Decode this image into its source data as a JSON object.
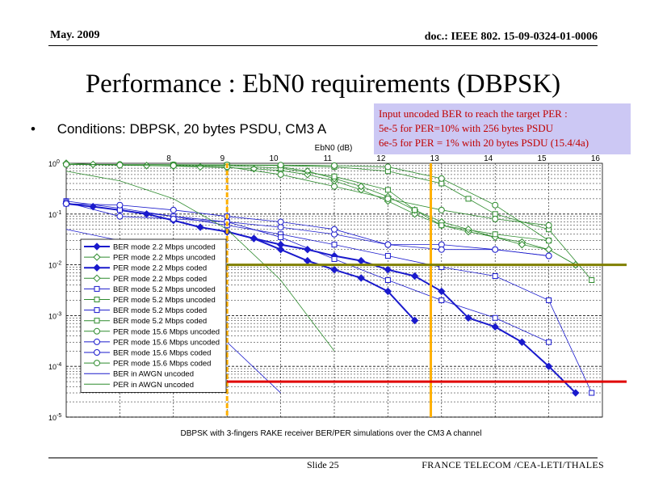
{
  "header": {
    "date": "May. 2009",
    "doc": "doc.: IEEE 802. 15-09-0324-01-0006"
  },
  "slide_title": "Performance : EbN0 requirements (DBPSK)",
  "bullet": {
    "marker": "•",
    "text": "Conditions: DBPSK, 20 bytes PSDU, CM3 A"
  },
  "note": {
    "line1": "Input uncoded BER to reach the target PER :",
    "line2": "5e-5 for PER=10% with 256 bytes PSDU",
    "line3": "6e-5 for PER = 1% with 20 bytes PSDU (15.4/4a)"
  },
  "footer": {
    "slide": "Slide 25",
    "org": "FRANCE TELECOM /CEA-LETI/THALES"
  },
  "colors": {
    "blue": "#1a1acc",
    "green": "#2e8b2e",
    "orange": "#ffb000",
    "red": "#e00000",
    "olive": "#808000"
  },
  "chart_data": {
    "type": "line",
    "xlabel": "EbN0 (dB)",
    "caption": "DBPSK with 3-fingers RAKE receiver BER/PER simulations over the CM3 A channel",
    "xlim": [
      6,
      16
    ],
    "ylim": [
      1e-05,
      1
    ],
    "yscale": "log",
    "x_ticks": [
      "8",
      "9",
      "10",
      "11",
      "12",
      "13",
      "14",
      "15",
      "16"
    ],
    "y_ticks": [
      {
        "base": "10",
        "exp": "0"
      },
      {
        "base": "10",
        "exp": "-1"
      },
      {
        "base": "10",
        "exp": "-2"
      },
      {
        "base": "10",
        "exp": "-3"
      },
      {
        "base": "10",
        "exp": "-4"
      },
      {
        "base": "10",
        "exp": "-5"
      }
    ],
    "grid": true,
    "legend_position": "left",
    "series": [
      {
        "name": "BER mode 2.2 Mbps uncoded",
        "color": "#1a1acc",
        "marker": "diamond",
        "fill": true,
        "bold": true,
        "x": [
          6,
          6.5,
          7,
          7.5,
          8,
          8.5,
          9,
          9.5,
          10,
          10.5,
          11,
          11.5,
          12,
          12.5
        ],
        "y": [
          0.16,
          0.14,
          0.12,
          0.1,
          0.075,
          0.055,
          0.045,
          0.033,
          0.02,
          0.012,
          0.008,
          0.0055,
          0.003,
          0.0008
        ]
      },
      {
        "name": "PER mode 2.2 Mbps uncoded",
        "color": "#2e8b2e",
        "marker": "diamond",
        "fill": false,
        "bold": false,
        "x": [
          6,
          6.5,
          7,
          7.5,
          8,
          8.5,
          9,
          9.5,
          10,
          10.5,
          11,
          11.5,
          12,
          12.5,
          13,
          13.5,
          14,
          14.5,
          15,
          15.5
        ],
        "y": [
          1,
          0.95,
          0.92,
          0.9,
          0.88,
          0.85,
          0.82,
          0.78,
          0.72,
          0.6,
          0.45,
          0.3,
          0.18,
          0.1,
          0.06,
          0.045,
          0.035,
          0.028,
          0.02,
          0.01
        ]
      },
      {
        "name": "PER mode 2.2 Mbps coded",
        "color": "#1a1acc",
        "marker": "diamond",
        "fill": true,
        "bold": true,
        "x": [
          9,
          9.5,
          10,
          10.5,
          11,
          11.5,
          12,
          12.5,
          13,
          13.5,
          14,
          14.5,
          15,
          15.5
        ],
        "y": [
          0.045,
          0.033,
          0.025,
          0.02,
          0.015,
          0.012,
          0.008,
          0.006,
          0.003,
          0.0009,
          0.0006,
          0.0003,
          0.0001,
          3e-05
        ]
      },
      {
        "name": "PER mode 2.2 Mbps coded",
        "color": "#2e8b2e",
        "marker": "diamond",
        "fill": false,
        "bold": false,
        "x": [
          10,
          10.5,
          11,
          11.5,
          12,
          12.5,
          13,
          13.5,
          14,
          14.5,
          15,
          15.5
        ],
        "y": [
          0.85,
          0.7,
          0.5,
          0.35,
          0.22,
          0.12,
          0.07,
          0.05,
          0.035,
          0.025,
          0.02,
          0.01
        ]
      },
      {
        "name": "BER mode 5.2 Mbps uncoded",
        "color": "#1a1acc",
        "marker": "square",
        "fill": false,
        "bold": false,
        "x": [
          6,
          7,
          8,
          9,
          10,
          11,
          12,
          13,
          14,
          15,
          15.8
        ],
        "y": [
          0.18,
          0.13,
          0.09,
          0.06,
          0.04,
          0.025,
          0.015,
          0.009,
          0.006,
          0.002,
          3e-05
        ]
      },
      {
        "name": "PER mode 5.2 Mbps uncoded",
        "color": "#2e8b2e",
        "marker": "square",
        "fill": false,
        "bold": false,
        "x": [
          8,
          9,
          10,
          11,
          12,
          13,
          13.5,
          14,
          15,
          15.8
        ],
        "y": [
          0.93,
          0.92,
          0.9,
          0.85,
          0.7,
          0.4,
          0.2,
          0.1,
          0.05,
          0.005
        ]
      },
      {
        "name": "BER mode 5.2 Mbps coded",
        "color": "#1a1acc",
        "marker": "square",
        "fill": false,
        "bold": false,
        "x": [
          6,
          7,
          8,
          9,
          10,
          11,
          12,
          13,
          14,
          15
        ],
        "y": [
          0.16,
          0.12,
          0.09,
          0.07,
          0.035,
          0.013,
          0.005,
          0.002,
          0.0009,
          0.0003
        ]
      },
      {
        "name": "BER mode 5.2 Mbps coded",
        "color": "#2e8b2e",
        "marker": "square",
        "fill": false,
        "bold": false,
        "x": [
          8,
          9,
          10,
          11,
          12,
          12.5,
          13,
          14,
          15
        ],
        "y": [
          0.93,
          0.9,
          0.8,
          0.55,
          0.3,
          0.12,
          0.06,
          0.04,
          0.03
        ]
      },
      {
        "name": "PER mode 15.6 Mbps uncoded",
        "color": "#2e8b2e",
        "marker": "circle",
        "fill": false,
        "bold": false,
        "x": [
          6,
          7,
          8,
          9,
          10,
          11,
          12,
          13,
          14,
          15
        ],
        "y": [
          0.95,
          0.95,
          0.94,
          0.93,
          0.92,
          0.9,
          0.85,
          0.5,
          0.15,
          0.03
        ]
      },
      {
        "name": "PER mode 15.6 Mbps uncoded",
        "color": "#1a1acc",
        "marker": "circle",
        "fill": false,
        "bold": false,
        "x": [
          6,
          7,
          8,
          9,
          10,
          11,
          12,
          13,
          14,
          15
        ],
        "y": [
          0.17,
          0.09,
          0.08,
          0.07,
          0.055,
          0.04,
          0.025,
          0.025,
          0.02,
          0.015
        ]
      },
      {
        "name": "BER mode 15.6 Mbps coded",
        "color": "#1a1acc",
        "marker": "circle",
        "fill": false,
        "bold": false,
        "x": [
          6,
          7,
          8,
          9,
          10,
          11,
          12,
          13,
          14,
          15
        ],
        "y": [
          0.16,
          0.15,
          0.12,
          0.09,
          0.07,
          0.05,
          0.025,
          0.02,
          0.02,
          0.015
        ]
      },
      {
        "name": "PER mode 15.6 Mbps coded",
        "color": "#2e8b2e",
        "marker": "circle",
        "fill": false,
        "bold": false,
        "x": [
          6,
          7,
          8,
          9,
          10,
          11,
          12,
          13,
          14,
          15
        ],
        "y": [
          0.95,
          0.92,
          0.9,
          0.85,
          0.6,
          0.35,
          0.2,
          0.12,
          0.08,
          0.06
        ]
      },
      {
        "name": "BER in AWGN uncoded",
        "color": "#1a1acc",
        "marker": "none",
        "fill": false,
        "bold": false,
        "x": [
          6,
          7,
          8,
          9,
          10
        ],
        "y": [
          0.05,
          0.03,
          0.005,
          0.0003,
          3e-05
        ]
      },
      {
        "name": "PER in AWGN uncoded",
        "color": "#2e8b2e",
        "marker": "none",
        "fill": false,
        "bold": false,
        "x": [
          6,
          7,
          8,
          9,
          10,
          11
        ],
        "y": [
          0.7,
          0.45,
          0.2,
          0.05,
          0.005,
          0.0002
        ]
      }
    ],
    "reference_lines": [
      {
        "orientation": "vertical",
        "value": 9,
        "color": "#ffb000",
        "style": "dashed"
      },
      {
        "orientation": "vertical",
        "value": 12.8,
        "color": "#ffb000",
        "style": "solid"
      },
      {
        "orientation": "horizontal",
        "value": 0.01,
        "color": "#808000",
        "from": 9
      },
      {
        "orientation": "horizontal",
        "value": 5e-05,
        "color": "#e00000",
        "from": 9
      }
    ]
  }
}
